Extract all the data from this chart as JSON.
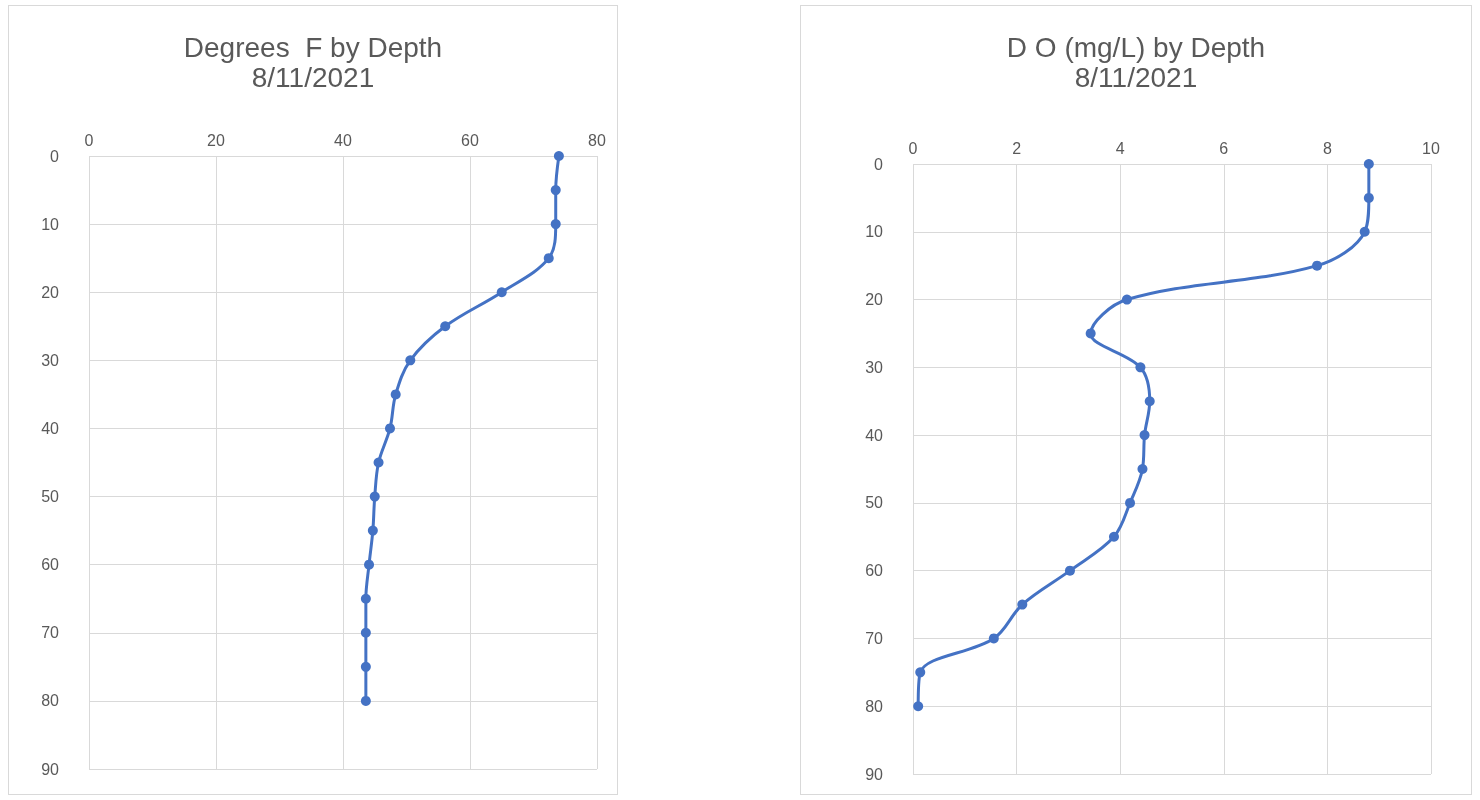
{
  "chart_data": [
    {
      "type": "line",
      "title": "Degrees  F by Depth",
      "subtitle": "8/11/2021",
      "series": [
        {
          "color": "#4472c4",
          "x": [
            74.0,
            73.5,
            73.5,
            72.4,
            65.0,
            56.1,
            50.6,
            48.3,
            47.4,
            45.6,
            45.0,
            44.7,
            44.1,
            43.6,
            43.6,
            43.6,
            43.6
          ],
          "values": [
            0,
            5,
            10,
            15,
            20,
            25,
            30,
            35,
            40,
            45,
            50,
            55,
            60,
            65,
            70,
            75,
            80
          ]
        }
      ],
      "xlim": [
        0,
        80
      ],
      "xticks": [
        0,
        20,
        40,
        60,
        80
      ],
      "ylim": [
        90,
        0
      ],
      "yticks": [
        0,
        10,
        20,
        30,
        40,
        50,
        60,
        70,
        80,
        90
      ],
      "grid": true,
      "marker": "circle",
      "line_style": "solid"
    },
    {
      "type": "line",
      "title": "D O (mg/L) by Depth",
      "subtitle": "8/11/2021",
      "series": [
        {
          "color": "#4472c4",
          "x": [
            8.8,
            8.8,
            8.72,
            7.8,
            4.13,
            3.43,
            4.39,
            4.57,
            4.47,
            4.43,
            4.19,
            3.88,
            3.03,
            2.11,
            1.56,
            0.14,
            0.1
          ],
          "values": [
            0,
            5,
            10,
            15,
            20,
            25,
            30,
            35,
            40,
            45,
            50,
            55,
            60,
            65,
            70,
            75,
            80
          ]
        }
      ],
      "xlim": [
        0,
        10
      ],
      "xticks": [
        0,
        2,
        4,
        6,
        8,
        10
      ],
      "ylim": [
        90,
        0
      ],
      "yticks": [
        0,
        10,
        20,
        30,
        40,
        50,
        60,
        70,
        80,
        90
      ],
      "grid": true,
      "marker": "circle",
      "line_style": "solid"
    }
  ]
}
